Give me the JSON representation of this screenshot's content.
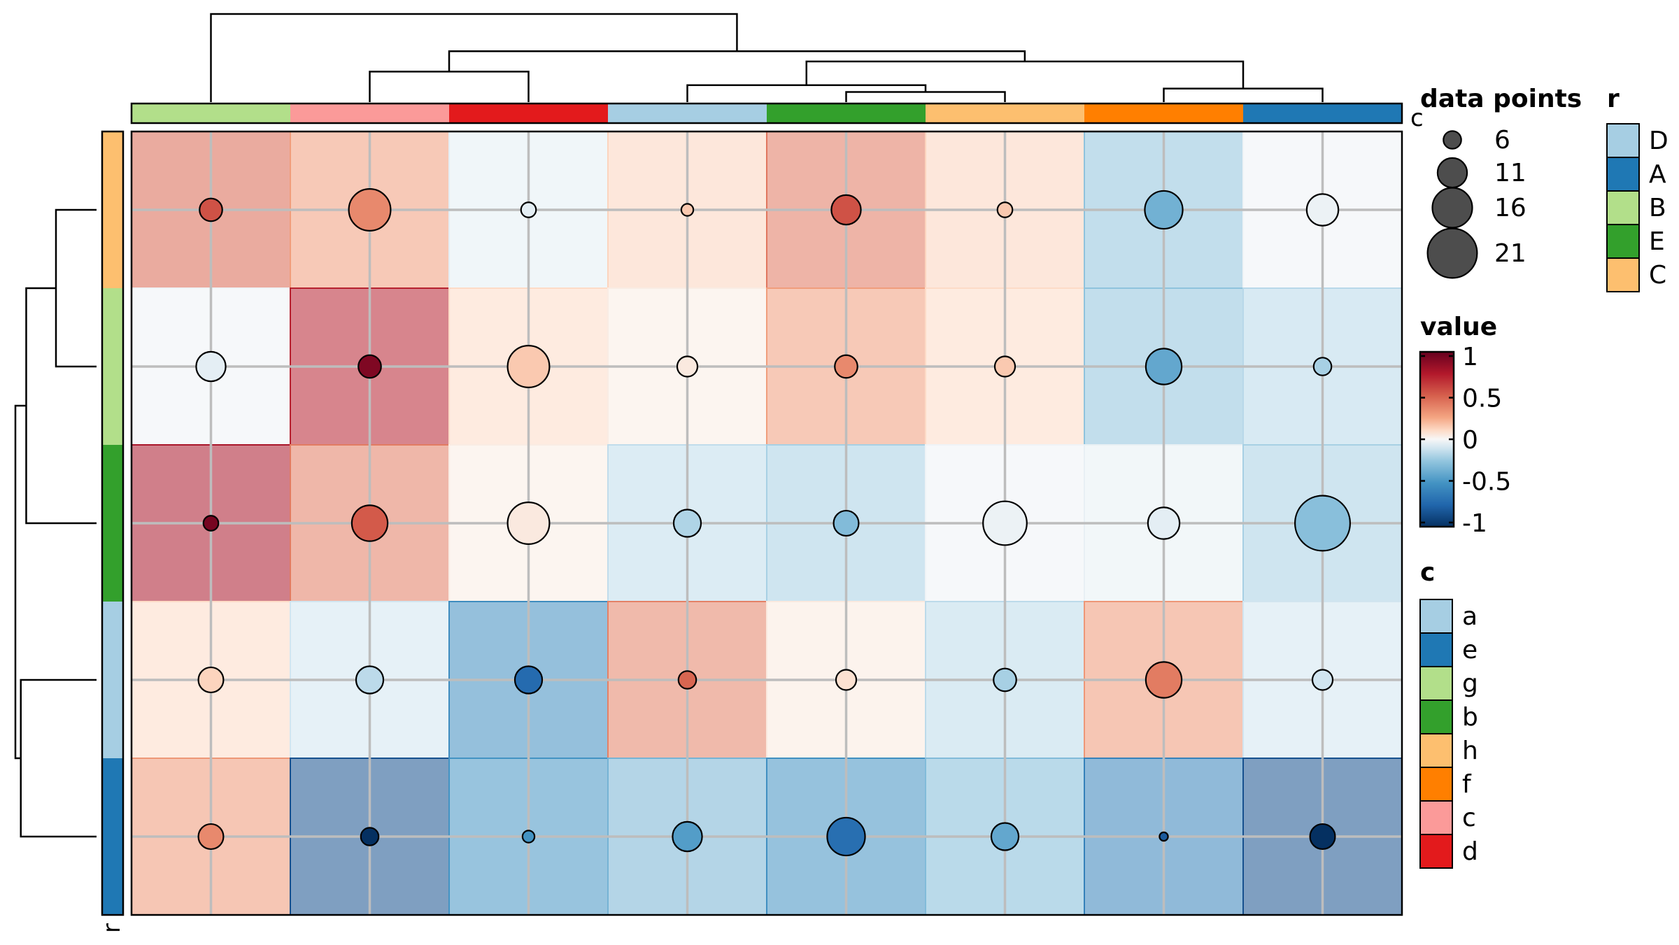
{
  "chart_data": {
    "type": "heatmap",
    "title": "",
    "row_annotation_name": "r",
    "col_annotation_name": "c",
    "rows": [
      "C",
      "B",
      "E",
      "D",
      "A"
    ],
    "cols": [
      "g",
      "c",
      "d",
      "a",
      "b",
      "h",
      "f",
      "e"
    ],
    "values": [
      [
        0.48,
        0.28,
        -0.05,
        0.12,
        0.42,
        0.12,
        -0.26,
        -0.02
      ],
      [
        -0.02,
        0.72,
        0.1,
        0.04,
        0.28,
        0.1,
        -0.26,
        -0.16
      ],
      [
        0.78,
        0.4,
        0.04,
        -0.14,
        -0.2,
        -0.02,
        -0.04,
        -0.2
      ],
      [
        0.1,
        -0.1,
        -0.54,
        0.38,
        0.05,
        -0.15,
        0.3,
        -0.1
      ],
      [
        0.3,
        -0.85,
        -0.5,
        -0.34,
        -0.52,
        -0.3,
        -0.6,
        -0.85
      ]
    ],
    "dot_values": [
      [
        0.55,
        0.35,
        -0.05,
        0.15,
        0.55,
        0.15,
        -0.35,
        -0.03
      ],
      [
        -0.05,
        0.92,
        0.15,
        0.05,
        0.35,
        0.15,
        -0.4,
        -0.2
      ],
      [
        0.95,
        0.52,
        0.05,
        -0.18,
        -0.3,
        -0.03,
        -0.05,
        -0.28
      ],
      [
        0.12,
        -0.15,
        -0.72,
        0.48,
        0.08,
        -0.2,
        0.4,
        -0.1
      ],
      [
        0.35,
        -1.0,
        -0.5,
        -0.45,
        -0.7,
        -0.4,
        -0.8,
        -1.0
      ]
    ],
    "data_points": [
      [
        8,
        17,
        5,
        4,
        11,
        5,
        15,
        12
      ],
      [
        11,
        8,
        17,
        7,
        8,
        7,
        14,
        6
      ],
      [
        5,
        14,
        17,
        10,
        9,
        18,
        12,
        24
      ],
      [
        9,
        10,
        10,
        6,
        7,
        8,
        14,
        7
      ],
      [
        9,
        6,
        4,
        11,
        15,
        10,
        3,
        9
      ]
    ],
    "row_annotation": {
      "labels": [
        "C",
        "B",
        "E",
        "D",
        "A"
      ],
      "colors": [
        "#FDBF6F",
        "#B2DF8A",
        "#33A02C",
        "#A6CEE3",
        "#1F78B4"
      ]
    },
    "col_annotation": {
      "labels": [
        "g",
        "c",
        "d",
        "a",
        "b",
        "h",
        "f",
        "e"
      ],
      "colors": [
        "#B2DF8A",
        "#FB9A99",
        "#E31A1C",
        "#A6CEE3",
        "#33A02C",
        "#FDBF6F",
        "#FF7F00",
        "#1F78B4"
      ]
    },
    "legends": {
      "size": {
        "title": "data points",
        "entries": [
          "6",
          "11",
          "16",
          "21"
        ],
        "values": [
          6,
          11,
          16,
          21
        ]
      },
      "color": {
        "title": "value",
        "ticks": [
          "1",
          "0.5",
          "0",
          "-0.5",
          "-1"
        ],
        "tick_values": [
          1,
          0.5,
          0,
          -0.5,
          -1
        ],
        "stops": [
          {
            "v": -1,
            "color": "#053061"
          },
          {
            "v": -0.75,
            "color": "#2166AC"
          },
          {
            "v": -0.5,
            "color": "#4393C3"
          },
          {
            "v": -0.25,
            "color": "#92C5DE"
          },
          {
            "v": -0.1,
            "color": "#D1E5F0"
          },
          {
            "v": 0,
            "color": "#F7F7F7"
          },
          {
            "v": 0.1,
            "color": "#FDDBC7"
          },
          {
            "v": 0.25,
            "color": "#F4A582"
          },
          {
            "v": 0.5,
            "color": "#D6604D"
          },
          {
            "v": 0.75,
            "color": "#B2182B"
          },
          {
            "v": 1,
            "color": "#67001F"
          }
        ]
      },
      "c": {
        "title": "c",
        "labels": [
          "a",
          "e",
          "g",
          "b",
          "h",
          "f",
          "c",
          "d"
        ],
        "colors": [
          "#A6CEE3",
          "#1F78B4",
          "#B2DF8A",
          "#33A02C",
          "#FDBF6F",
          "#FF7F00",
          "#FB9A99",
          "#E31A1C"
        ]
      },
      "r": {
        "title": "r",
        "labels": [
          "D",
          "A",
          "B",
          "E",
          "C"
        ],
        "colors": [
          "#A6CEE3",
          "#1F78B4",
          "#B2DF8A",
          "#33A02C",
          "#FDBF6F"
        ]
      }
    },
    "col_dendrogram": [
      [
        1,
        2,
        0.18
      ],
      [
        4,
        5,
        0.06
      ],
      [
        3,
        9,
        0.1
      ],
      [
        6,
        7,
        0.08
      ],
      [
        10,
        11,
        0.24
      ],
      [
        8,
        12,
        0.3
      ],
      [
        0,
        13,
        0.52
      ]
    ],
    "row_dendrogram": [
      [
        0,
        1,
        0.15
      ],
      [
        5,
        2,
        0.26
      ],
      [
        3,
        4,
        0.28
      ],
      [
        6,
        7,
        0.3
      ]
    ]
  }
}
